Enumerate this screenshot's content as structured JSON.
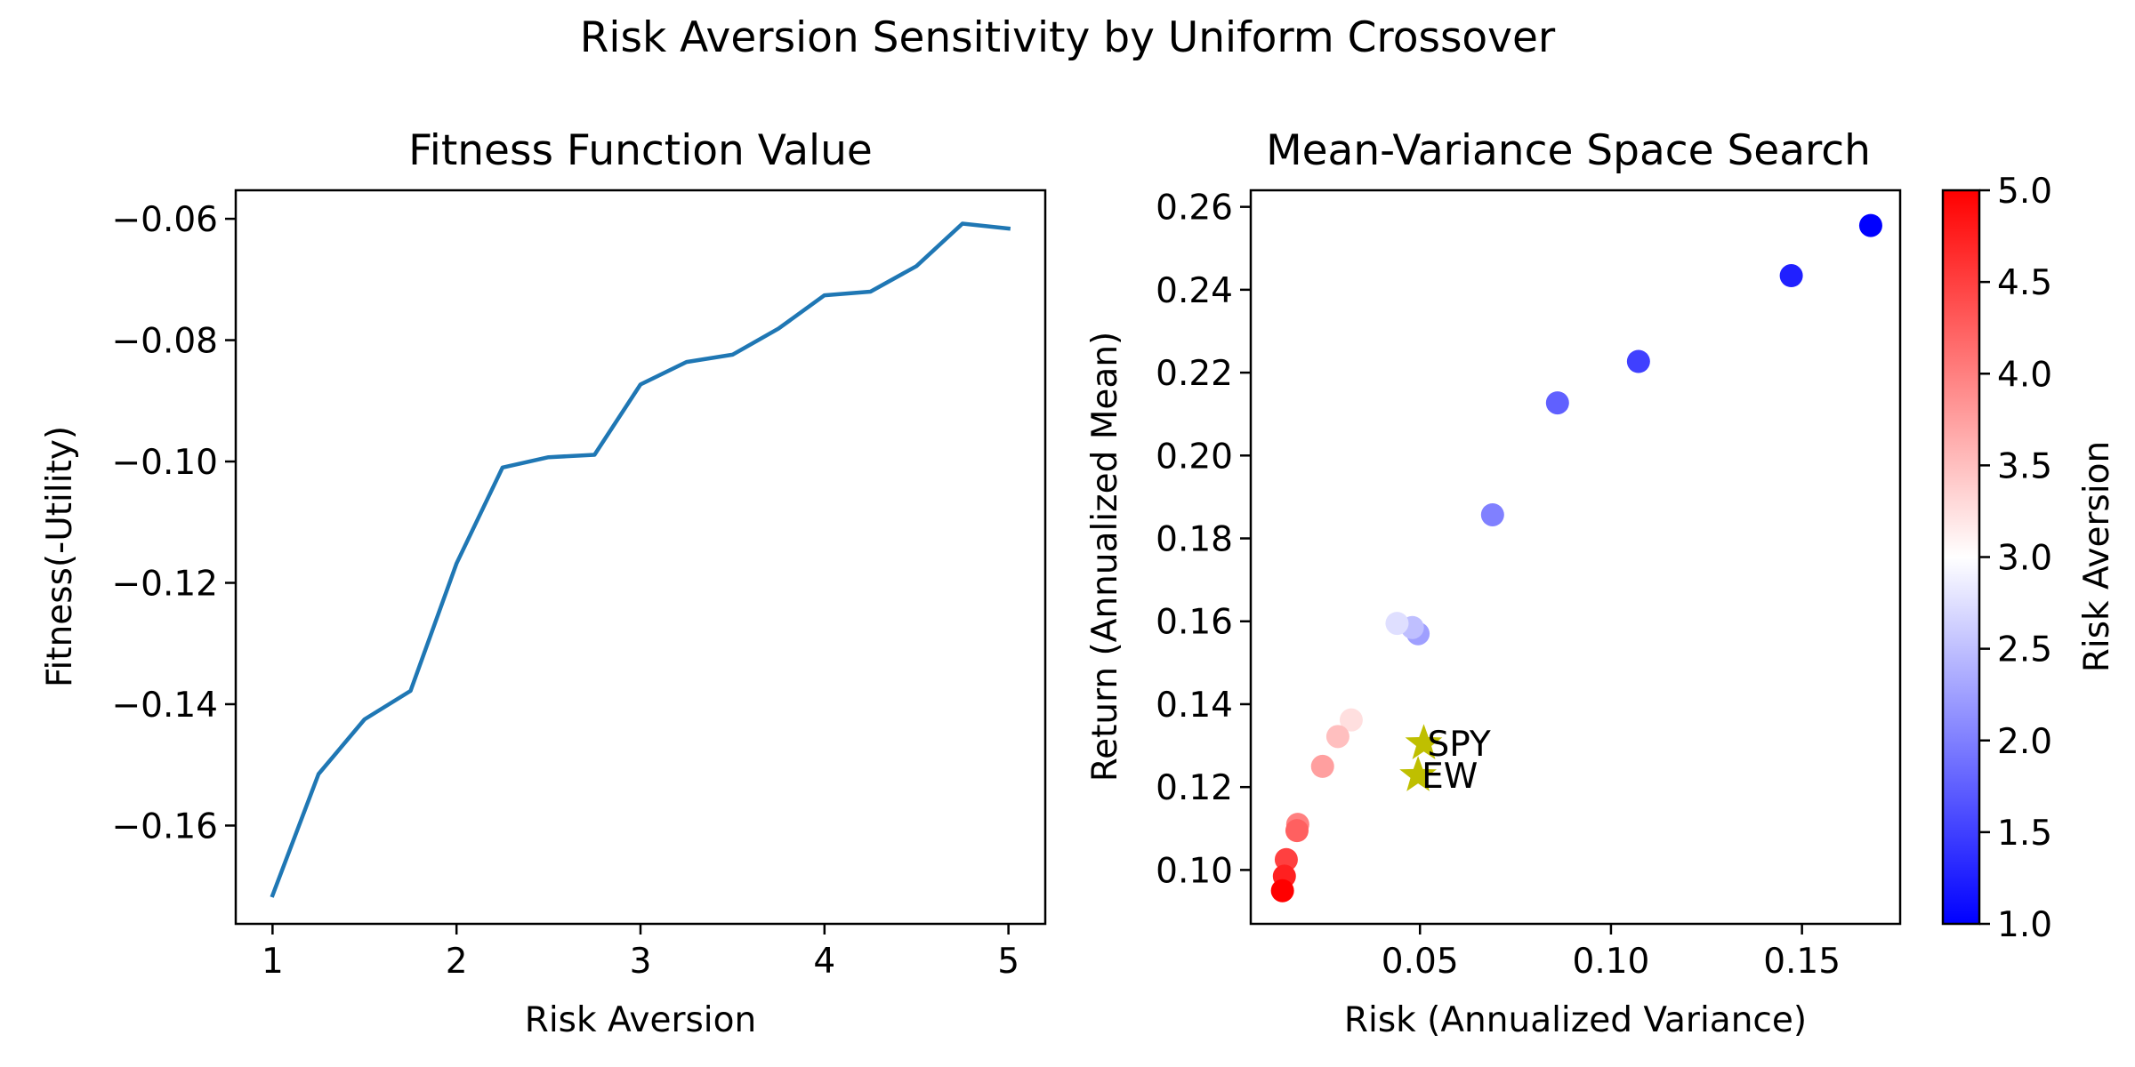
{
  "figure": {
    "suptitle": "Risk Aversion Sensitivity by Uniform Crossover"
  },
  "chart_data": [
    {
      "type": "line",
      "title": "Fitness Function Value",
      "xlabel": "Risk Aversion",
      "ylabel": "Fitness(-Utility)",
      "xlim": [
        0.8,
        5.2
      ],
      "ylim": [
        -0.1762,
        -0.0553
      ],
      "xticks": [
        1,
        2,
        3,
        4,
        5
      ],
      "xtick_labels": [
        "1",
        "2",
        "3",
        "4",
        "5"
      ],
      "yticks": [
        -0.16,
        -0.14,
        -0.12,
        -0.1,
        -0.08,
        -0.06
      ],
      "ytick_labels": [
        "−0.16",
        "−0.14",
        "−0.12",
        "−0.10",
        "−0.08",
        "−0.06"
      ],
      "grid": false,
      "color": "#1f77b4",
      "series": [
        {
          "name": "fitness",
          "x": [
            1.0,
            1.25,
            1.5,
            1.75,
            2.0,
            2.25,
            2.5,
            2.75,
            3.0,
            3.25,
            3.5,
            3.75,
            4.0,
            4.25,
            4.5,
            4.75,
            5.0
          ],
          "y": [
            -0.1715,
            -0.1515,
            -0.1425,
            -0.1378,
            -0.1168,
            -0.101,
            -0.0993,
            -0.0989,
            -0.0873,
            -0.0836,
            -0.0824,
            -0.0781,
            -0.0726,
            -0.072,
            -0.0678,
            -0.0608,
            -0.0616
          ]
        }
      ]
    },
    {
      "type": "scatter",
      "title": "Mean-Variance Space Search",
      "xlabel": "Risk (Annualized Variance)",
      "ylabel": "Return (Annualized Mean)",
      "xlim": [
        0.0057,
        0.1757
      ],
      "ylim": [
        0.087,
        0.264
      ],
      "xticks": [
        0.05,
        0.1,
        0.15
      ],
      "xtick_labels": [
        "0.05",
        "0.10",
        "0.15"
      ],
      "yticks": [
        0.1,
        0.12,
        0.14,
        0.16,
        0.18,
        0.2,
        0.22,
        0.24,
        0.26
      ],
      "ytick_labels": [
        "0.10",
        "0.12",
        "0.14",
        "0.16",
        "0.18",
        "0.20",
        "0.22",
        "0.24",
        "0.26"
      ],
      "grid": false,
      "colormap": "bwr",
      "colormap_stops": [
        "#0000ff",
        "#ffffff",
        "#ff0000"
      ],
      "colorbar": {
        "label": "Risk Aversion",
        "range": [
          1.0,
          5.0
        ],
        "ticks": [
          1.0,
          1.5,
          2.0,
          2.5,
          3.0,
          3.5,
          4.0,
          4.5,
          5.0
        ],
        "tick_labels": [
          "1.0",
          "1.5",
          "2.0",
          "2.5",
          "3.0",
          "3.5",
          "4.0",
          "4.5",
          "5.0"
        ]
      },
      "points": [
        {
          "x": 0.168,
          "y": 0.2555,
          "c": 1.0
        },
        {
          "x": 0.1472,
          "y": 0.2434,
          "c": 1.25
        },
        {
          "x": 0.1072,
          "y": 0.2227,
          "c": 1.5
        },
        {
          "x": 0.086,
          "y": 0.2127,
          "c": 1.75
        },
        {
          "x": 0.069,
          "y": 0.1857,
          "c": 2.0
        },
        {
          "x": 0.0495,
          "y": 0.157,
          "c": 2.25
        },
        {
          "x": 0.048,
          "y": 0.1585,
          "c": 2.5
        },
        {
          "x": 0.044,
          "y": 0.1595,
          "c": 2.75
        },
        {
          "x": 0.032,
          "y": 0.1362,
          "c": 3.25
        },
        {
          "x": 0.0285,
          "y": 0.1322,
          "c": 3.5
        },
        {
          "x": 0.0245,
          "y": 0.125,
          "c": 3.75
        },
        {
          "x": 0.018,
          "y": 0.111,
          "c": 4.0
        },
        {
          "x": 0.0178,
          "y": 0.1095,
          "c": 4.25
        },
        {
          "x": 0.015,
          "y": 0.1025,
          "c": 4.5
        },
        {
          "x": 0.0145,
          "y": 0.0985,
          "c": 4.75
        },
        {
          "x": 0.014,
          "y": 0.095,
          "c": 5.0
        }
      ],
      "benchmarks": [
        {
          "label": "SPY",
          "x": 0.051,
          "y": 0.1305,
          "color": "#bfbf00",
          "marker": "star"
        },
        {
          "label": "EW",
          "x": 0.0495,
          "y": 0.1228,
          "color": "#bfbf00",
          "marker": "star"
        }
      ]
    }
  ]
}
